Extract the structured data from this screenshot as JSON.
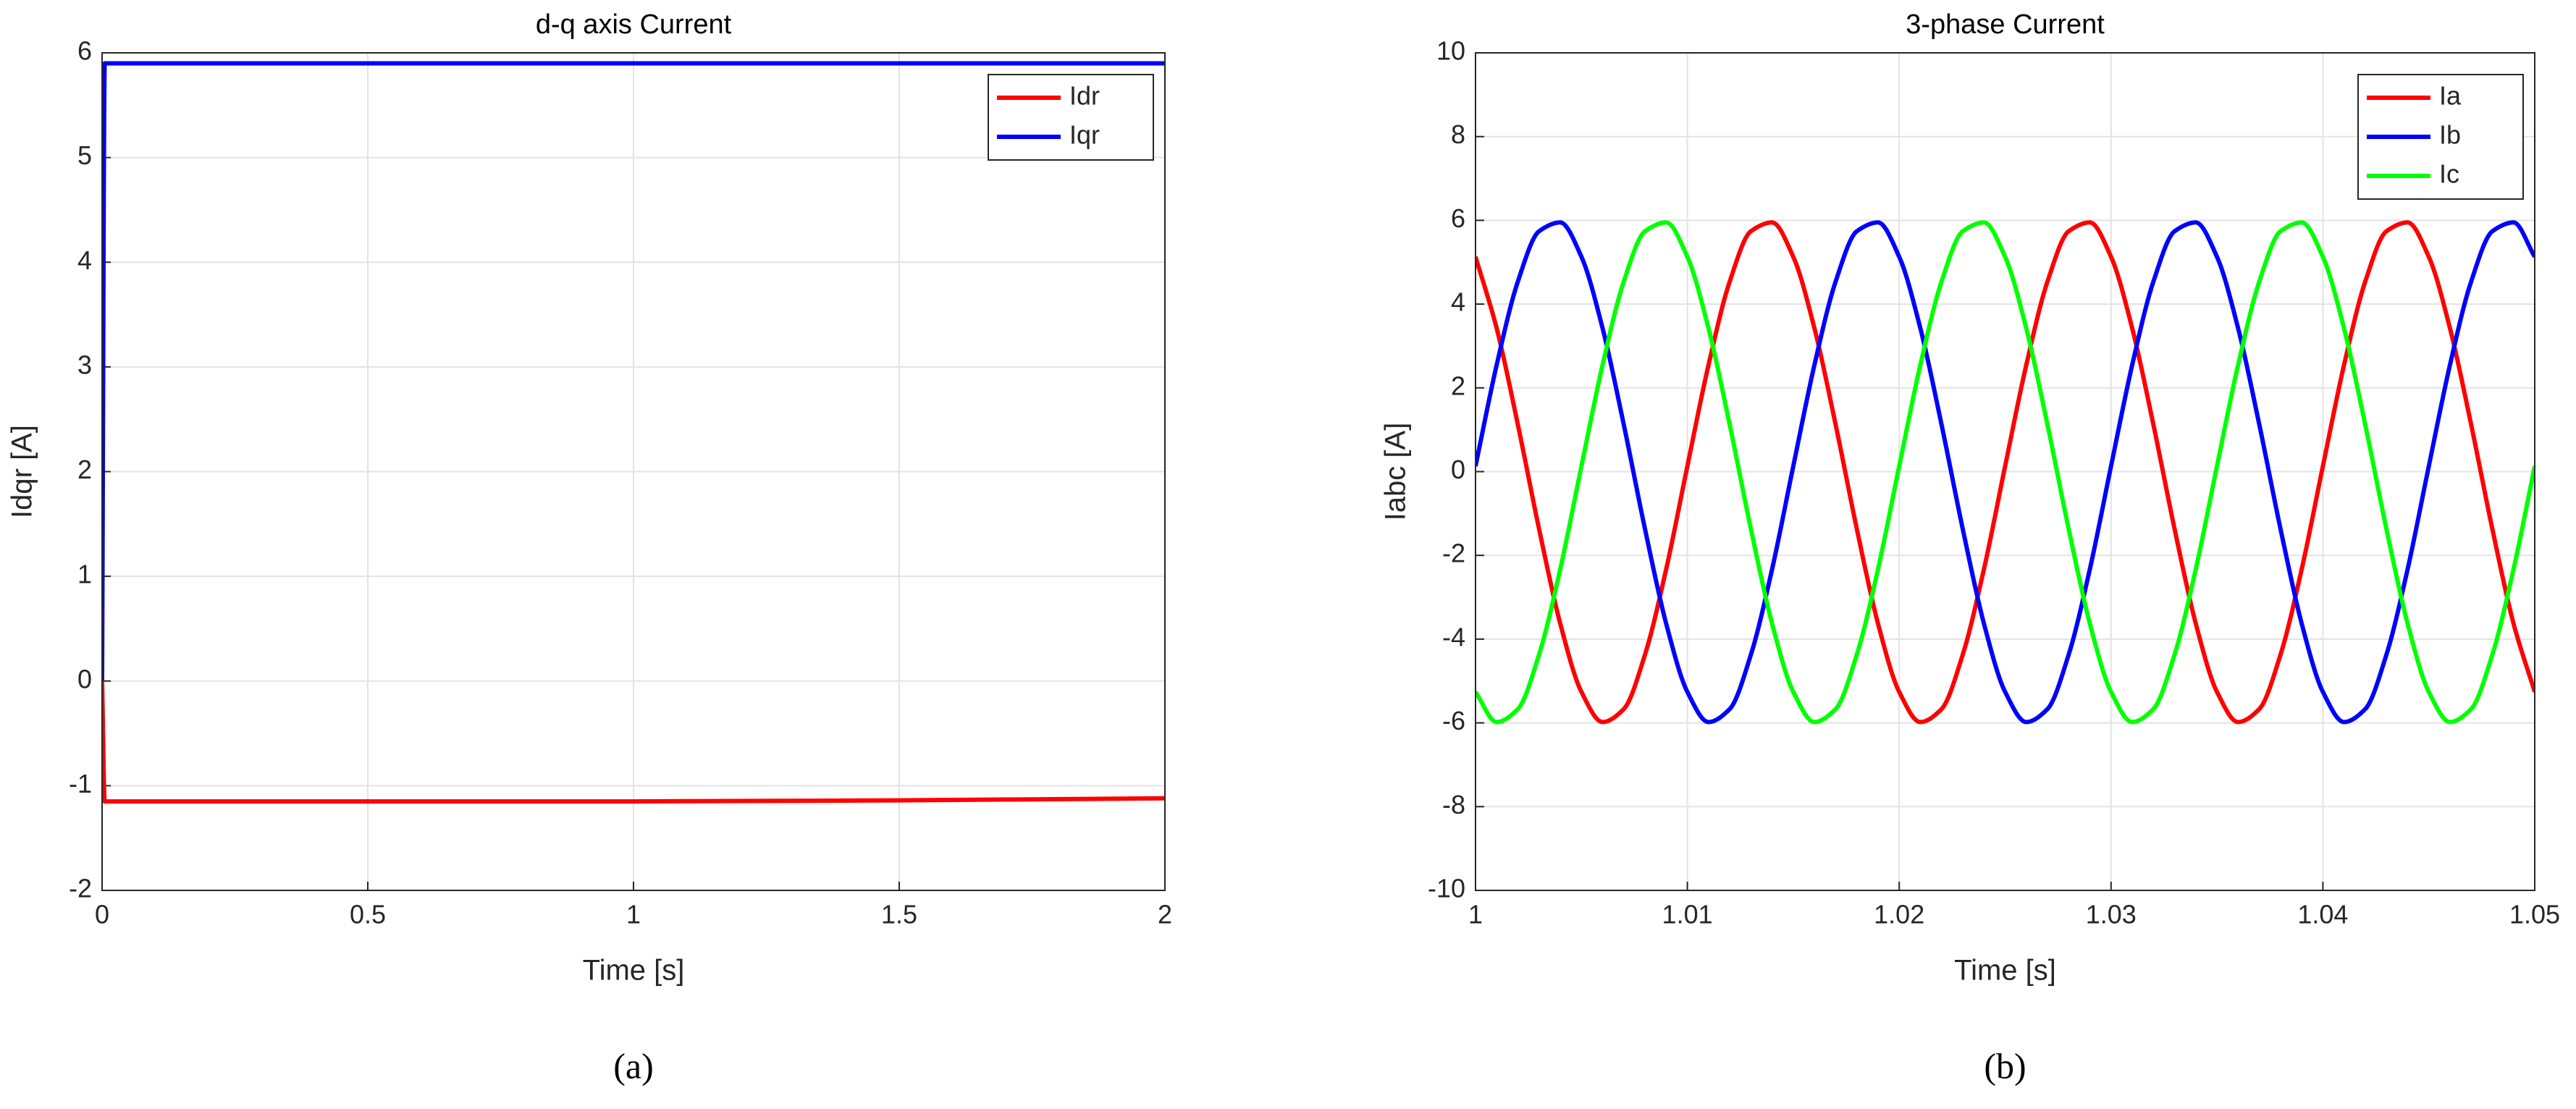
{
  "chart_data": [
    {
      "type": "line",
      "title": "d-q axis Current",
      "xlabel": "Time [s]",
      "ylabel": "Idqr [A]",
      "caption": "(a)",
      "x": [
        0,
        0.005,
        0.01,
        0.5,
        1,
        1.5,
        2
      ],
      "series": [
        {
          "name": "Idr",
          "color": "#ff0000",
          "values": [
            0,
            -1.15,
            -1.15,
            -1.15,
            -1.15,
            -1.14,
            -1.12
          ]
        },
        {
          "name": "Iqr",
          "color": "#0000ff",
          "values": [
            0,
            5.9,
            5.9,
            5.9,
            5.9,
            5.9,
            5.9
          ]
        }
      ],
      "xlim": [
        0,
        2
      ],
      "xticks": [
        0,
        0.5,
        1,
        1.5,
        2
      ],
      "ylim": [
        -2,
        6
      ],
      "yticks": [
        -2,
        -1,
        0,
        1,
        2,
        3,
        4,
        5,
        6
      ],
      "grid": true,
      "legend": "northeast"
    },
    {
      "type": "line",
      "title": "3-phase Current",
      "xlabel": "Time [s]",
      "ylabel": "Iabc [A]",
      "caption": "(b)",
      "x": [
        1,
        1.001,
        1.002,
        1.003,
        1.004,
        1.005,
        1.006,
        1.007,
        1.008,
        1.009,
        1.01,
        1.011,
        1.012,
        1.013,
        1.014,
        1.015,
        1.016,
        1.017,
        1.018,
        1.019,
        1.02,
        1.021,
        1.022,
        1.023,
        1.024,
        1.025,
        1.026,
        1.027,
        1.028,
        1.029,
        1.03,
        1.031,
        1.032,
        1.033,
        1.034,
        1.035,
        1.036,
        1.037,
        1.038,
        1.039,
        1.04,
        1.041,
        1.042,
        1.043,
        1.044,
        1.045,
        1.046,
        1.047,
        1.048,
        1.049,
        1.05
      ],
      "series": [
        {
          "name": "Ia",
          "color": "#ff0000",
          "values": [
            5.13,
            3.42,
            1.12,
            -1.37,
            -3.63,
            -5.26,
            -5.98,
            -5.67,
            -4.37,
            -2.33,
            0.13,
            2.55,
            4.54,
            5.74,
            5.95,
            5.13,
            3.42,
            1.12,
            -1.37,
            -3.63,
            -5.26,
            -5.98,
            -5.67,
            -4.37,
            -2.33,
            0.13,
            2.55,
            4.54,
            5.74,
            5.95,
            5.13,
            3.42,
            1.12,
            -1.37,
            -3.63,
            -5.26,
            -5.98,
            -5.67,
            -4.37,
            -2.33,
            0.13,
            2.55,
            4.54,
            5.74,
            5.95,
            5.13,
            3.42,
            1.12,
            -1.37,
            -3.63,
            -5.26
          ]
        },
        {
          "name": "Ib",
          "color": "#0000ff",
          "values": [
            0.13,
            2.55,
            4.54,
            5.74,
            5.95,
            5.13,
            3.42,
            1.12,
            -1.37,
            -3.63,
            -5.26,
            -5.98,
            -5.67,
            -4.37,
            -2.33,
            0.13,
            2.55,
            4.54,
            5.74,
            5.95,
            5.13,
            3.42,
            1.12,
            -1.37,
            -3.63,
            -5.26,
            -5.98,
            -5.67,
            -4.37,
            -2.33,
            0.13,
            2.55,
            4.54,
            5.74,
            5.95,
            5.13,
            3.42,
            1.12,
            -1.37,
            -3.63,
            -5.26,
            -5.98,
            -5.67,
            -4.37,
            -2.33,
            0.13,
            2.55,
            4.54,
            5.74,
            5.95,
            5.13
          ]
        },
        {
          "name": "Ic",
          "color": "#00ff00",
          "values": [
            -5.26,
            -5.98,
            -5.67,
            -4.37,
            -2.33,
            0.13,
            2.55,
            4.54,
            5.74,
            5.95,
            5.13,
            3.42,
            1.12,
            -1.37,
            -3.63,
            -5.26,
            -5.98,
            -5.67,
            -4.37,
            -2.33,
            0.13,
            2.55,
            4.54,
            5.74,
            5.95,
            5.13,
            3.42,
            1.12,
            -1.37,
            -3.63,
            -5.26,
            -5.98,
            -5.67,
            -4.37,
            -2.33,
            0.13,
            2.55,
            4.54,
            5.74,
            5.95,
            5.13,
            3.42,
            1.12,
            -1.37,
            -3.63,
            -5.26,
            -5.98,
            -5.67,
            -4.37,
            -2.33,
            0.13
          ]
        }
      ],
      "xlim": [
        1,
        1.05
      ],
      "xticks": [
        1,
        1.01,
        1.02,
        1.03,
        1.04,
        1.05
      ],
      "ylim": [
        -10,
        10
      ],
      "yticks": [
        -10,
        -8,
        -6,
        -4,
        -2,
        0,
        2,
        4,
        6,
        8,
        10
      ],
      "grid": true,
      "legend": "northeast"
    }
  ]
}
